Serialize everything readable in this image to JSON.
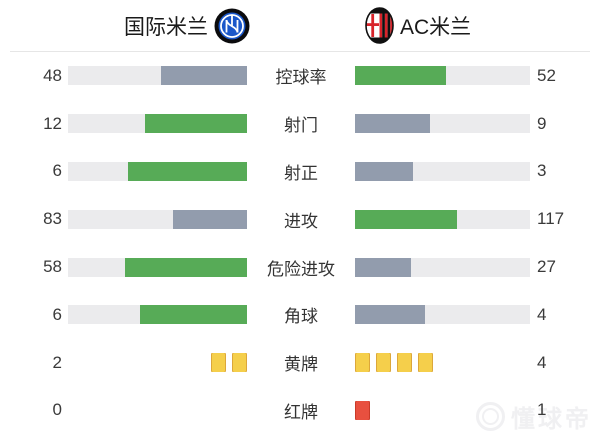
{
  "header": {
    "home_team": "国际米兰",
    "away_team": "AC米兰"
  },
  "chart_data": {
    "type": "bar",
    "orientation": "horizontal-paired",
    "categories": [
      "控球率",
      "射门",
      "射正",
      "进攻",
      "危险进攻",
      "角球",
      "黄牌",
      "红牌"
    ],
    "series": [
      {
        "name": "国际米兰",
        "values": [
          48,
          12,
          6,
          83,
          58,
          6,
          2,
          0
        ]
      },
      {
        "name": "AC米兰",
        "values": [
          52,
          9,
          3,
          117,
          27,
          4,
          4,
          1
        ]
      }
    ],
    "legend_position": "top",
    "value_labels": "outer-edges",
    "bar_fill_rule": "value / (home + away); higher value colored green, lower gray; card rows drawn as card icons"
  },
  "rows": [
    {
      "label": "控球率",
      "home": 48,
      "away": 52,
      "type": "bar"
    },
    {
      "label": "射门",
      "home": 12,
      "away": 9,
      "type": "bar"
    },
    {
      "label": "射正",
      "home": 6,
      "away": 3,
      "type": "bar"
    },
    {
      "label": "进攻",
      "home": 83,
      "away": 117,
      "type": "bar"
    },
    {
      "label": "危险进攻",
      "home": 58,
      "away": 27,
      "type": "bar"
    },
    {
      "label": "角球",
      "home": 6,
      "away": 4,
      "type": "bar"
    },
    {
      "label": "黄牌",
      "home": 2,
      "away": 4,
      "type": "cards",
      "card": "yellow"
    },
    {
      "label": "红牌",
      "home": 0,
      "away": 1,
      "type": "cards",
      "card": "red"
    }
  ],
  "colors": {
    "win_fill": "#57ab57",
    "lose_fill": "#929cad",
    "track": "#ebebed",
    "yellow_card": "#f5cf4b",
    "yellow_card_border": "#dca73a",
    "red_card": "#e8503f",
    "red_card_border": "#c93a28",
    "divider": "#e6e6e6",
    "inter_blue": "#1b57c9",
    "milan_red": "#d8232a",
    "badge_black": "#101010"
  },
  "watermark": {
    "text": "懂球帝"
  }
}
